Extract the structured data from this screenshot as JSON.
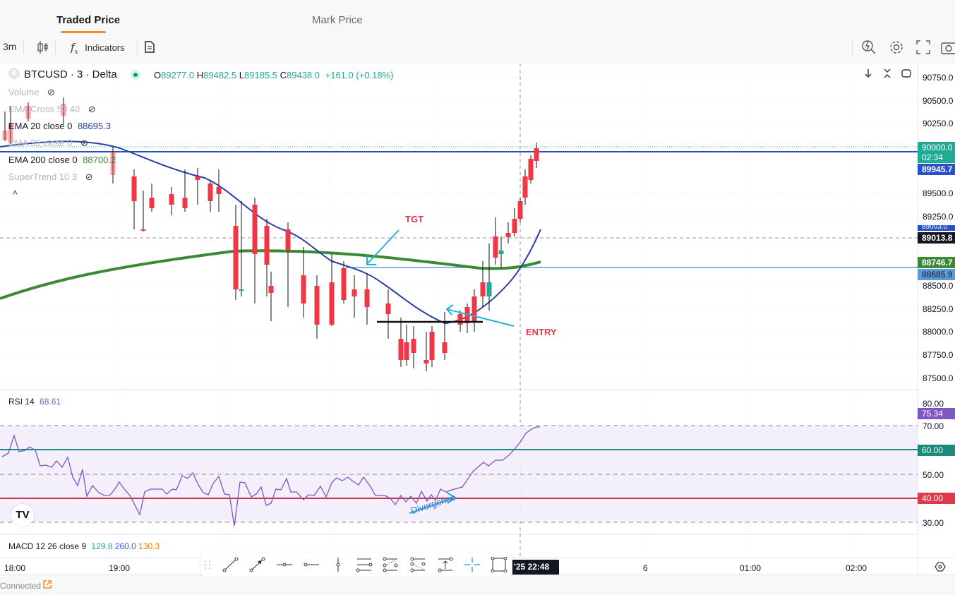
{
  "tabs": [
    {
      "label": "Traded Price",
      "active": true
    },
    {
      "label": "Mark Price",
      "active": false
    }
  ],
  "toolbar": {
    "interval": "3m",
    "indicators_label": "Indicators"
  },
  "symbol": {
    "name": "BTCUSD · 3 · Delta",
    "open_label": "O",
    "open": "89277.0",
    "high_label": "H",
    "high": "89482.5",
    "low_label": "L",
    "low": "89185.5",
    "close_label": "C",
    "close": "89438.0",
    "change": "+161.0 (+0.18%)"
  },
  "legends": {
    "volume": "Volume",
    "ema_cross": "EMA Cross 50 40",
    "ema20": "EMA 20 close 0",
    "ema20_value": "88695.3",
    "ema35": "EMA 35 close 0",
    "ema200": "EMA 200 close 0",
    "ema200_value": "88700.2",
    "supertrend": "SuperTrend 10 3",
    "rsi": "RSI 14",
    "rsi_value": "68.61",
    "macd": "MACD 12 26 close 9",
    "macd_v1": "129.8",
    "macd_v2": "260.0",
    "macd_v3": "130.3"
  },
  "annotations": {
    "tgt": "TGT",
    "entry": "ENTRY",
    "divergence": "Divergence"
  },
  "price_axis": {
    "ticks": [
      "90750.0",
      "90500.0",
      "90250.0",
      "89500.0",
      "89250.0",
      "88500.0",
      "88250.0",
      "88000.0",
      "87750.0",
      "87500.0"
    ],
    "tags": {
      "last_price": "90000.0",
      "countdown": "02:34",
      "ema_blue": "89945.7",
      "hidden": "89003.0",
      "crosshair": "89013.8",
      "ema200": "88746.7",
      "hline": "88685.9"
    }
  },
  "rsi_axis": {
    "ticks": [
      "80.00",
      "70.00",
      "50.00",
      "30.00"
    ],
    "tags": {
      "rsi": "75.34",
      "upper": "60.00",
      "lower": "40.00"
    }
  },
  "time_axis": {
    "ticks": [
      "18:00",
      "19:00",
      "6",
      "01:00",
      "02:00"
    ],
    "cursor": "'25  22:48"
  },
  "status": {
    "connection": "Connected"
  },
  "colors": {
    "up": "#22ab94",
    "down": "#f23645",
    "ema20": "#2a3fa8",
    "ema200": "#3a8a34",
    "rsi_line": "#7e57c2",
    "rsi_upper": "#1b8a7a",
    "rsi_lower": "#c2354f",
    "annotation_red": "#e03a4a",
    "annotation_cyan": "#1eb4d4",
    "accent": "#f28c28"
  }
}
